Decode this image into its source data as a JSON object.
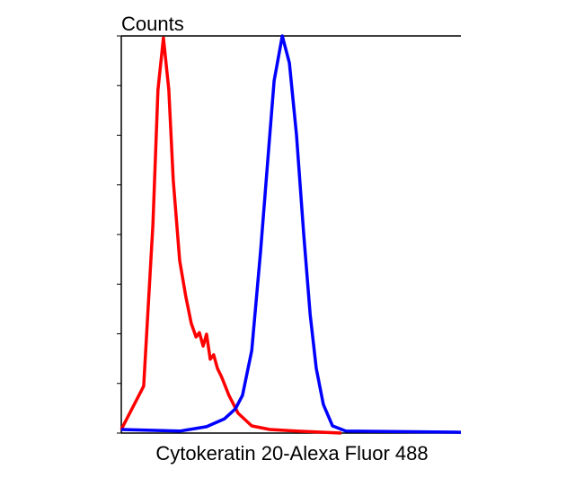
{
  "chart_data": {
    "type": "line",
    "y_label": "Counts",
    "x_label": "Cytokeratin 20-Alexa Fluor 488",
    "xlim": [
      0,
      100
    ],
    "ylim": [
      0,
      100
    ],
    "yticks": [
      0,
      12.5,
      25,
      37.5,
      50,
      62.5,
      75,
      87.5,
      100
    ],
    "series": [
      {
        "color": "#ff0000",
        "x": [
          0,
          6.6,
          9.3,
          10.8,
          12.4,
          14.0,
          15.3,
          17.2,
          19.0,
          20.6,
          22.0,
          23.0,
          24.1,
          25.1,
          26.2,
          27.2,
          28.3,
          29.6,
          31.7,
          34.4,
          38.4,
          43.7,
          51.6,
          64.8
        ],
        "values": [
          0.9,
          11.8,
          52.5,
          86.4,
          99.5,
          86.4,
          63.8,
          43.4,
          34.4,
          27.6,
          24.2,
          25.3,
          21.9,
          24.9,
          18.6,
          19.7,
          16.3,
          14.0,
          9.5,
          5.0,
          1.8,
          0.9,
          0.5,
          0
        ]
      },
      {
        "color": "#0000ff",
        "x": [
          0,
          17.2,
          25.1,
          30.4,
          33.6,
          35.7,
          38.4,
          41.0,
          43.1,
          45.0,
          47.4,
          49.5,
          51.6,
          53.7,
          55.6,
          57.4,
          59.5,
          62.2,
          66.1,
          100
        ],
        "values": [
          0.9,
          0.5,
          1.6,
          3.6,
          6.1,
          9.5,
          20.8,
          45.7,
          68.3,
          88.7,
          100,
          93.2,
          75.1,
          50.2,
          29.9,
          16.3,
          7.2,
          1.8,
          0.5,
          0.2
        ]
      }
    ]
  }
}
